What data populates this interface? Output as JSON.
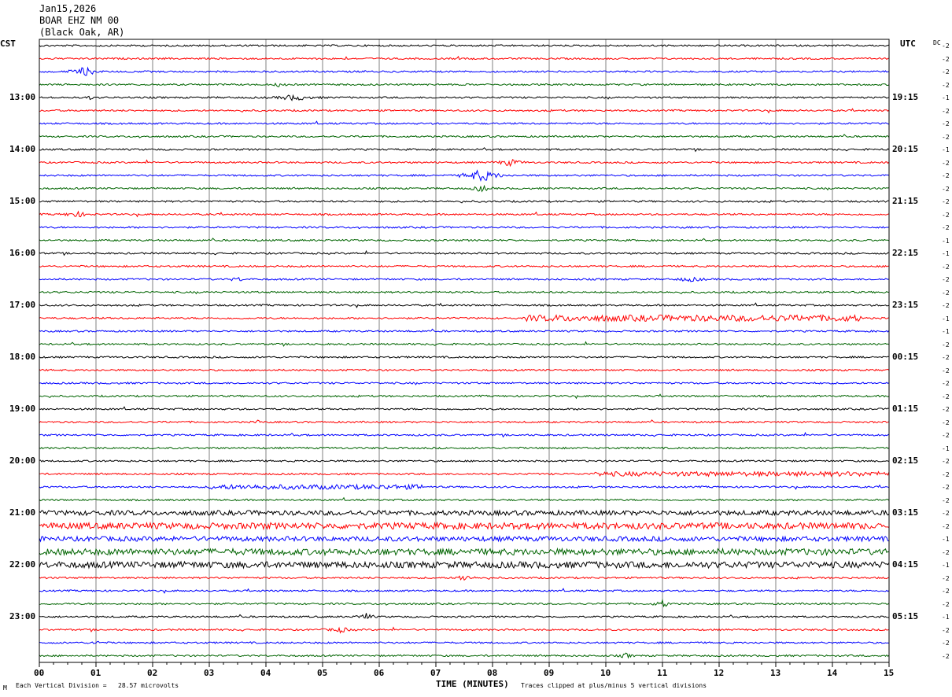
{
  "header": {
    "date": "Jan15,2026",
    "station": "BOAR EHZ NM 00",
    "location": "(Black Oak, AR)"
  },
  "left_axis_title": "CST",
  "right_axis_title": "UTC",
  "dc_header": "DC",
  "footer": {
    "scale_note": "Each Vertical Division =   28.57 microvolts",
    "xlabel": "TIME (MINUTES)",
    "clip_note": "Traces clipped at plus/minus 5 vertical divisions",
    "corner_mark": "M"
  },
  "colors": {
    "trace_cycle": [
      "#000000",
      "#ff0000",
      "#0000ff",
      "#006400"
    ],
    "grid": "#808080",
    "frame": "#000000"
  },
  "chart_data": {
    "type": "line",
    "description_free": true,
    "x_range": [
      0,
      15
    ],
    "x_ticks": [
      "00",
      "01",
      "02",
      "03",
      "04",
      "05",
      "06",
      "07",
      "08",
      "09",
      "10",
      "11",
      "12",
      "13",
      "14",
      "15"
    ],
    "left_hour_labels": [
      "13:00",
      "14:00",
      "15:00",
      "16:00",
      "17:00",
      "18:00",
      "19:00",
      "20:00",
      "21:00",
      "22:00",
      "23:00"
    ],
    "right_hour_labels": [
      "19:15",
      "20:15",
      "21:15",
      "22:15",
      "23:15",
      "00:15",
      "01:15",
      "02:15",
      "03:15",
      "04:15",
      "05:15"
    ],
    "trace_count": 48,
    "dc_offsets": [
      "-2",
      "-2",
      "-2",
      "-2",
      "-1",
      "-2",
      "-2",
      "-2",
      "-1",
      "-2",
      "-2",
      "-2",
      "-2",
      "-2",
      "-2",
      "-1",
      "-1",
      "-2",
      "-2",
      "-2",
      "-2",
      "-1",
      "-1",
      "-2",
      "-2",
      "-2",
      "-2",
      "-2",
      "-2",
      "-2",
      "-2",
      "-1",
      "-2",
      "-2",
      "-2",
      "-2",
      "-2",
      "-2",
      "-1",
      "-2",
      "-1",
      "-2",
      "-2",
      "-2",
      "-1",
      "-2",
      "-2",
      "-2"
    ],
    "events": [
      {
        "trace": 2,
        "start": 0.5,
        "end": 1.1,
        "amp": 6
      },
      {
        "trace": 3,
        "start": 4.0,
        "end": 4.5,
        "amp": 3
      },
      {
        "trace": 4,
        "start": 4.0,
        "end": 5.0,
        "amp": 4
      },
      {
        "trace": 4,
        "start": 0.85,
        "end": 0.95,
        "amp": 5
      },
      {
        "trace": 9,
        "start": 8.0,
        "end": 8.6,
        "amp": 5
      },
      {
        "trace": 10,
        "start": 7.4,
        "end": 8.2,
        "amp": 8
      },
      {
        "trace": 11,
        "start": 7.6,
        "end": 8.0,
        "amp": 5
      },
      {
        "trace": 13,
        "start": 0.3,
        "end": 1.0,
        "amp": 4
      },
      {
        "trace": 18,
        "start": 3.2,
        "end": 3.8,
        "amp": 3
      },
      {
        "trace": 18,
        "start": 11.0,
        "end": 12.0,
        "amp": 3
      },
      {
        "trace": 21,
        "start": 8.6,
        "end": 14.5,
        "amp": 4
      },
      {
        "trace": 29,
        "start": 3.8,
        "end": 3.9,
        "amp": 5
      },
      {
        "trace": 33,
        "start": 9.8,
        "end": 15.0,
        "amp": 3
      },
      {
        "trace": 34,
        "start": 3.0,
        "end": 6.8,
        "amp": 3
      },
      {
        "trace": 36,
        "start": 0.0,
        "end": 15.0,
        "amp": 3
      },
      {
        "trace": 37,
        "start": 0.0,
        "end": 15.0,
        "amp": 4
      },
      {
        "trace": 38,
        "start": 0.0,
        "end": 15.0,
        "amp": 3
      },
      {
        "trace": 39,
        "start": 0.0,
        "end": 15.0,
        "amp": 4
      },
      {
        "trace": 40,
        "start": 0.0,
        "end": 15.0,
        "amp": 4
      },
      {
        "trace": 40,
        "start": 9.6,
        "end": 9.9,
        "amp": 7
      },
      {
        "trace": 41,
        "start": 7.3,
        "end": 7.7,
        "amp": 5
      },
      {
        "trace": 43,
        "start": 10.8,
        "end": 11.2,
        "amp": 5
      },
      {
        "trace": 44,
        "start": 5.6,
        "end": 5.9,
        "amp": 6
      },
      {
        "trace": 45,
        "start": 5.0,
        "end": 5.6,
        "amp": 4
      },
      {
        "trace": 46,
        "start": 0.9,
        "end": 1.1,
        "amp": 4
      },
      {
        "trace": 47,
        "start": 10.2,
        "end": 10.5,
        "amp": 4
      }
    ]
  }
}
